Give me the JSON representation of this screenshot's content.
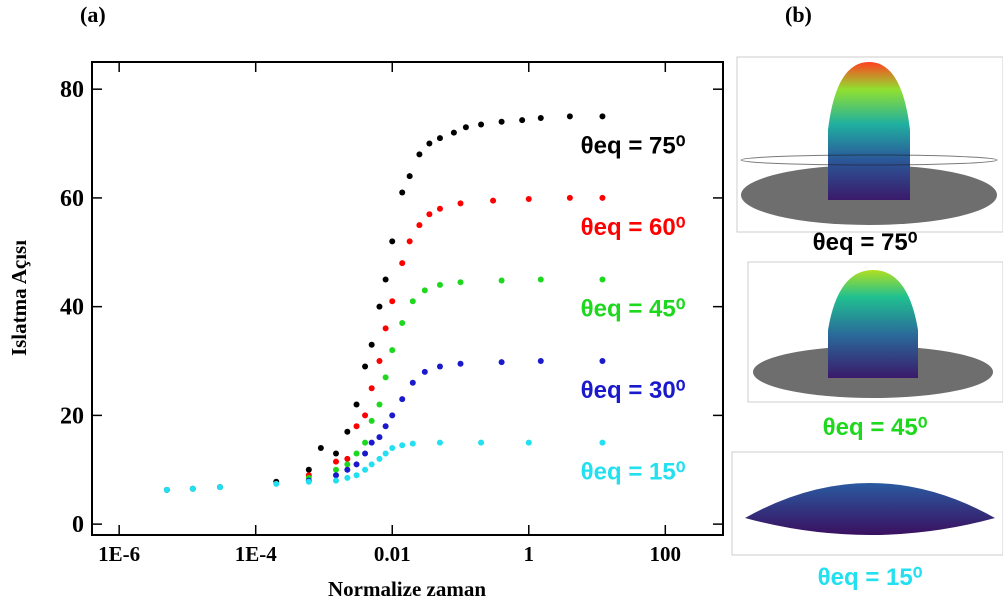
{
  "chart_data": {
    "type": "scatter",
    "title": "(a)",
    "xlabel": "Normalize zaman",
    "ylabel": "Islatma Açısı",
    "xscale": "log",
    "xlim": [
      4e-07,
      700
    ],
    "ylim": [
      -2,
      85
    ],
    "xticks": [
      {
        "value": 1e-06,
        "label": "1E-6"
      },
      {
        "value": 0.0001,
        "label": "1E-4"
      },
      0.01,
      1,
      100
    ],
    "yticks": [
      0,
      20,
      40,
      60,
      80
    ],
    "series": [
      {
        "name": "θeq = 75⁰",
        "color": "#000000",
        "x": [
          5e-06,
          1.2e-05,
          3e-05,
          0.0002,
          0.0006,
          0.0009,
          0.0015,
          0.0022,
          0.003,
          0.004,
          0.005,
          0.0065,
          0.008,
          0.01,
          0.014,
          0.018,
          0.025,
          0.035,
          0.05,
          0.08,
          0.12,
          0.2,
          0.4,
          0.8,
          1.5,
          4,
          12
        ],
        "values": [
          6.3,
          6.5,
          6.8,
          7.8,
          10,
          14,
          13,
          17,
          22,
          29,
          33,
          40,
          45,
          52,
          61,
          64,
          68,
          70,
          71,
          72,
          73,
          73.5,
          74,
          74.3,
          74.7,
          75,
          75
        ]
      },
      {
        "name": "θeq = 60⁰",
        "color": "#ff0000",
        "x": [
          0.0006,
          0.0015,
          0.0022,
          0.003,
          0.004,
          0.005,
          0.0065,
          0.008,
          0.01,
          0.014,
          0.018,
          0.025,
          0.035,
          0.05,
          0.1,
          0.3,
          1,
          4,
          12
        ],
        "values": [
          9,
          11.5,
          12,
          18,
          20,
          25,
          30,
          36,
          41,
          48,
          52,
          55,
          57,
          58,
          59,
          59.5,
          59.8,
          60,
          60
        ]
      },
      {
        "name": "θeq = 45⁰",
        "color": "#1ed81e",
        "x": [
          0.0006,
          0.0015,
          0.0022,
          0.003,
          0.004,
          0.005,
          0.0065,
          0.008,
          0.01,
          0.014,
          0.02,
          0.03,
          0.05,
          0.1,
          0.4,
          1.5,
          12
        ],
        "values": [
          8.5,
          10,
          11,
          13,
          15,
          19,
          22,
          27,
          32,
          37,
          41,
          43,
          44,
          44.5,
          44.8,
          45,
          45
        ]
      },
      {
        "name": "θeq = 30⁰",
        "color": "#1a1acc",
        "x": [
          0.0006,
          0.0015,
          0.0022,
          0.003,
          0.004,
          0.005,
          0.0065,
          0.008,
          0.01,
          0.014,
          0.02,
          0.03,
          0.05,
          0.1,
          0.4,
          1.5,
          12
        ],
        "values": [
          8,
          9,
          10,
          11,
          13,
          15,
          16,
          18,
          20,
          23,
          26,
          28,
          29,
          29.5,
          29.8,
          30,
          30
        ]
      },
      {
        "name": "θeq = 15⁰",
        "color": "#22e0ef",
        "x": [
          5e-06,
          1.2e-05,
          3e-05,
          0.0002,
          0.0006,
          0.0015,
          0.0022,
          0.003,
          0.004,
          0.005,
          0.0065,
          0.008,
          0.01,
          0.014,
          0.02,
          0.05,
          0.2,
          1,
          12
        ],
        "values": [
          6.3,
          6.5,
          6.8,
          7.4,
          7.8,
          8,
          8.5,
          9,
          10,
          11,
          12,
          13,
          14,
          14.5,
          14.8,
          15,
          15,
          15,
          15
        ]
      }
    ]
  },
  "panel_b": {
    "label": "(b)",
    "captions": [
      "θeq = 75⁰",
      "θeq = 45⁰",
      "θeq = 15⁰"
    ]
  }
}
